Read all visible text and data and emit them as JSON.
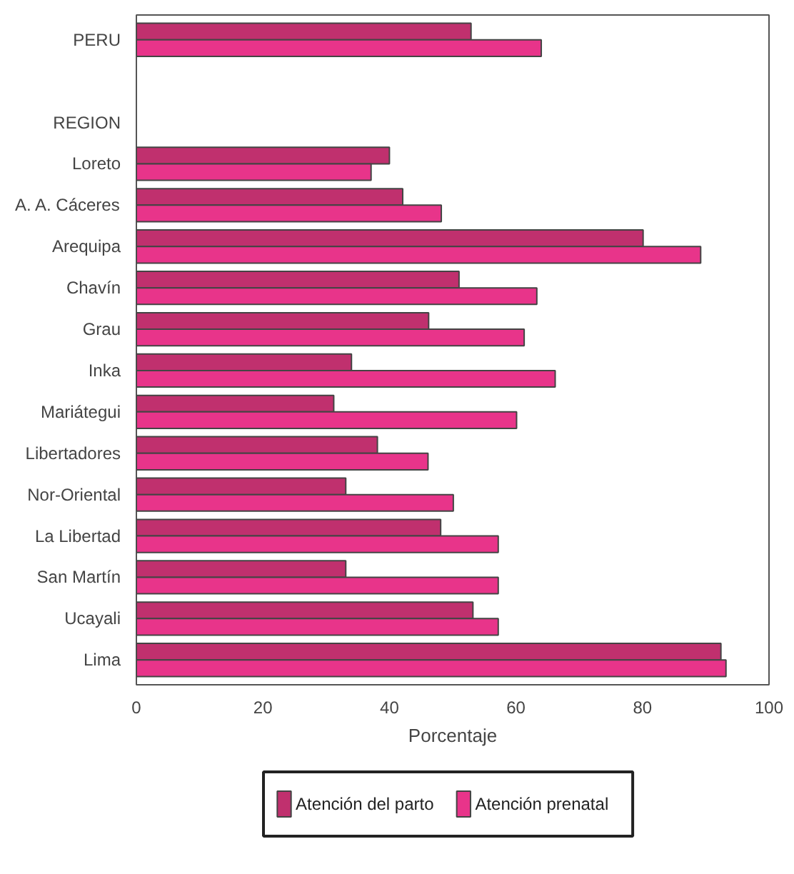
{
  "chart_data": {
    "type": "bar",
    "orientation": "horizontal",
    "xlabel": "Porcentaje",
    "categories": [
      "PERU",
      null,
      "REGION",
      "Loreto",
      "A. A. Cáceres",
      "Arequipa",
      "Chavín",
      "Grau",
      "Inka",
      "Mariátegui",
      "Libertadores",
      "Nor-Oriental",
      "La Libertad",
      "San Martín",
      "Ucayali",
      "Lima"
    ],
    "series": [
      {
        "name": "Atención del parto",
        "color": "#c0306e",
        "values": [
          52.9,
          null,
          null,
          40.0,
          42.1,
          80.1,
          51.0,
          46.2,
          34.0,
          31.2,
          38.1,
          33.1,
          48.1,
          33.1,
          53.2,
          92.4
        ]
      },
      {
        "name": "Atención prenatal",
        "color": "#e8348a",
        "values": [
          64.0,
          null,
          null,
          37.1,
          48.2,
          89.2,
          63.3,
          61.3,
          66.2,
          60.1,
          46.1,
          50.1,
          57.2,
          57.2,
          57.2,
          93.2
        ]
      }
    ],
    "xlim": [
      0,
      100
    ],
    "xticks": [
      0,
      20,
      40,
      60,
      80,
      100
    ],
    "grid": false,
    "legend": "bottom"
  }
}
